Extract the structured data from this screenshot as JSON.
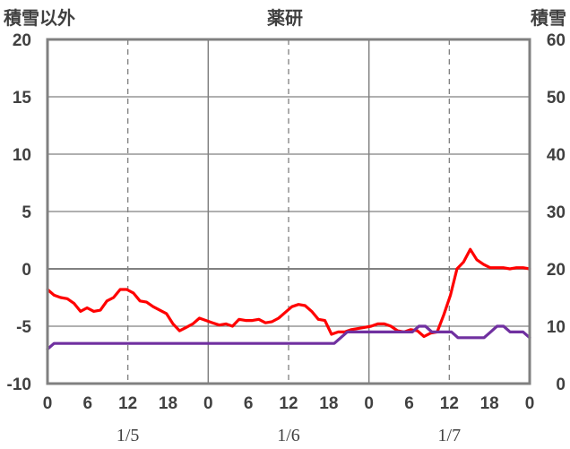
{
  "chart_data": {
    "type": "line",
    "title": "薬研",
    "left_axis_label": "積雪以外",
    "right_axis_label": "積雪",
    "left_ylim": [
      -10,
      20
    ],
    "left_yticks": [
      "20",
      "15",
      "10",
      "5",
      "0",
      "-5",
      "-10"
    ],
    "right_ylim": [
      0,
      60
    ],
    "right_yticks": [
      "60",
      "50",
      "40",
      "30",
      "20",
      "10",
      "0"
    ],
    "x_range_hours": [
      0,
      72
    ],
    "x_tick_labels": [
      "0",
      "6",
      "12",
      "18",
      "0",
      "6",
      "12",
      "18",
      "0",
      "6",
      "12",
      "18",
      "0"
    ],
    "date_labels": [
      "1/5",
      "1/6",
      "1/7"
    ],
    "grid": true,
    "series": [
      {
        "axis": "left",
        "color": "#ff0000",
        "values": [
          -1.8,
          -2.3,
          -2.5,
          -2.6,
          -3.0,
          -3.7,
          -3.4,
          -3.7,
          -3.6,
          -2.8,
          -2.5,
          -1.8,
          -1.8,
          -2.1,
          -2.8,
          -2.9,
          -3.3,
          -3.6,
          -3.9,
          -4.8,
          -5.4,
          -5.1,
          -4.8,
          -4.3,
          -4.5,
          -4.7,
          -4.9,
          -4.8,
          -5.0,
          -4.4,
          -4.5,
          -4.5,
          -4.4,
          -4.7,
          -4.6,
          -4.3,
          -3.8,
          -3.3,
          -3.1,
          -3.2,
          -3.7,
          -4.4,
          -4.5,
          -5.7,
          -5.5,
          -5.5,
          -5.3,
          -5.2,
          -5.1,
          -5.0,
          -4.8,
          -4.8,
          -5.0,
          -5.4,
          -5.5,
          -5.3,
          -5.4,
          -5.9,
          -5.6,
          -5.5,
          -4.0,
          -2.3,
          0.0,
          0.6,
          1.7,
          0.8,
          0.4,
          0.1,
          0.1,
          0.1,
          0.0,
          0.1,
          0.1,
          0.0
        ]
      },
      {
        "axis": "right",
        "color": "#7030a0",
        "values": [
          6,
          7,
          7,
          7,
          7,
          7,
          7,
          7,
          7,
          7,
          7,
          7,
          7,
          7,
          7,
          7,
          7,
          7,
          7,
          7,
          7,
          7,
          7,
          7,
          7,
          7,
          7,
          7,
          7,
          7,
          7,
          7,
          7,
          7,
          7,
          7,
          7,
          7,
          7,
          7,
          7,
          7,
          7,
          7,
          7,
          8,
          9,
          9,
          9,
          9,
          9,
          9,
          9,
          9,
          9,
          9,
          9,
          10,
          10,
          9,
          9,
          9,
          9,
          8,
          8,
          8,
          8,
          8,
          9,
          10,
          10,
          9,
          9,
          9,
          8
        ]
      }
    ]
  }
}
